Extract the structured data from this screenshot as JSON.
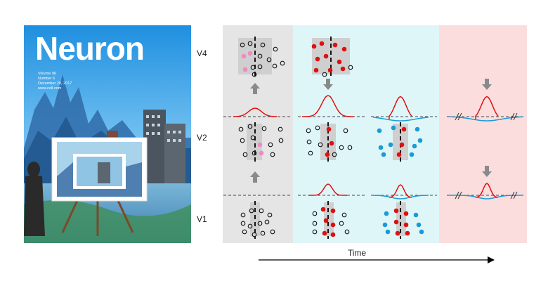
{
  "cover": {
    "journal": "Neuron",
    "volume": "Volume 96",
    "number": "Number 6",
    "date": "December 20, 2017",
    "url": "www.cell.com"
  },
  "diagram": {
    "area_labels": [
      "V4",
      "V2",
      "V1"
    ],
    "time_label": "Time",
    "colors": {
      "panel_gray": "#e5e5e5",
      "panel_cyan": "#dff6f8",
      "panel_pink": "#fbdddd",
      "active_red": "#dd1111",
      "pink_dot": "#f08ac4",
      "blue_dot": "#1a9bd7",
      "arrow_gray": "#8a8a8a"
    }
  }
}
